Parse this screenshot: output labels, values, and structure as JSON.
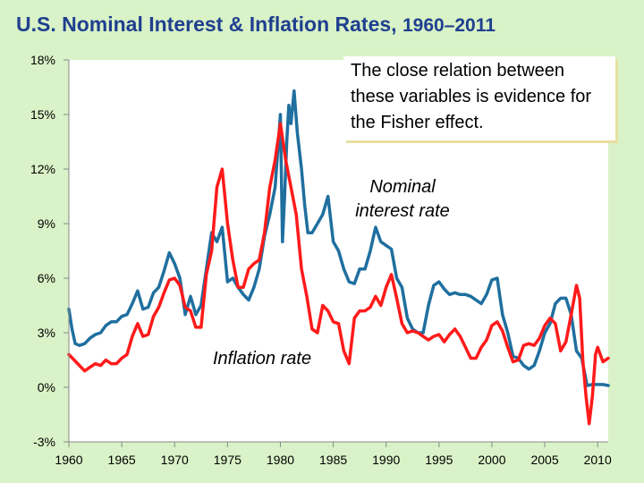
{
  "title": {
    "main": "U.S. Nominal Interest & Inflation Rates,",
    "years": "1960–2011"
  },
  "annotation": "The close relation between these variables is evidence for the Fisher effect.",
  "colors": {
    "background": "#d9f2c7",
    "title": "#1f3f8f",
    "nominal": "#1f6f9f",
    "inflation": "#ff1a1a"
  },
  "chart_data": {
    "type": "line",
    "title": "U.S. Nominal Interest & Inflation Rates, 1960–2011",
    "xlabel": "",
    "ylabel": "",
    "xlim": [
      1960,
      2011
    ],
    "ylim": [
      -3,
      18
    ],
    "x_ticks": [
      1960,
      1965,
      1970,
      1975,
      1980,
      1985,
      1990,
      1995,
      2000,
      2005,
      2010
    ],
    "y_ticks": [
      -3,
      0,
      3,
      6,
      9,
      12,
      15,
      18
    ],
    "y_tick_labels": [
      "-3%",
      "0%",
      "3%",
      "6%",
      "9%",
      "12%",
      "15%",
      "18%"
    ],
    "x_tick_labels": [
      "1960",
      "1965",
      "1970",
      "1975",
      "1980",
      "1985",
      "1990",
      "1995",
      "2000",
      "2005",
      "2010"
    ],
    "series": [
      {
        "name": "Nominal interest rate",
        "label": "Nominal\ninterest rate",
        "x": [
          1960.0,
          1960.3,
          1960.6,
          1961.0,
          1961.5,
          1962.0,
          1962.5,
          1963.0,
          1963.5,
          1964.0,
          1964.5,
          1965.0,
          1965.5,
          1966.0,
          1966.5,
          1967.0,
          1967.5,
          1968.0,
          1968.5,
          1969.0,
          1969.5,
          1970.0,
          1970.5,
          1971.0,
          1971.5,
          1972.0,
          1972.5,
          1973.0,
          1973.5,
          1974.0,
          1974.5,
          1975.0,
          1975.5,
          1976.0,
          1976.5,
          1977.0,
          1977.5,
          1978.0,
          1978.5,
          1979.0,
          1979.5,
          1980.0,
          1980.2,
          1980.4,
          1980.6,
          1980.8,
          1981.0,
          1981.3,
          1981.6,
          1982.0,
          1982.3,
          1982.6,
          1983.0,
          1983.5,
          1984.0,
          1984.5,
          1985.0,
          1985.5,
          1986.0,
          1986.5,
          1987.0,
          1987.5,
          1988.0,
          1988.5,
          1989.0,
          1989.5,
          1990.0,
          1990.5,
          1991.0,
          1991.5,
          1992.0,
          1992.5,
          1993.0,
          1993.5,
          1994.0,
          1994.5,
          1995.0,
          1995.5,
          1996.0,
          1996.5,
          1997.0,
          1997.5,
          1998.0,
          1998.5,
          1999.0,
          1999.5,
          2000.0,
          2000.5,
          2001.0,
          2001.5,
          2002.0,
          2002.5,
          2003.0,
          2003.5,
          2004.0,
          2004.5,
          2005.0,
          2005.5,
          2006.0,
          2006.5,
          2007.0,
          2007.5,
          2008.0,
          2008.5,
          2009.0,
          2009.5,
          2010.0,
          2010.5,
          2011.0
        ],
        "values": [
          4.3,
          3.2,
          2.4,
          2.3,
          2.4,
          2.7,
          2.9,
          3.0,
          3.4,
          3.6,
          3.6,
          3.9,
          4.0,
          4.6,
          5.3,
          4.3,
          4.4,
          5.2,
          5.5,
          6.4,
          7.4,
          6.8,
          6.0,
          4.0,
          5.0,
          4.0,
          4.5,
          6.5,
          8.5,
          8.0,
          8.8,
          5.8,
          6.0,
          5.5,
          5.1,
          4.8,
          5.5,
          6.5,
          8.3,
          9.5,
          11.0,
          15.0,
          8.0,
          10.5,
          13.5,
          15.5,
          14.5,
          16.3,
          14.0,
          12.0,
          10.0,
          8.5,
          8.5,
          9.0,
          9.5,
          10.5,
          8.0,
          7.5,
          6.5,
          5.8,
          5.7,
          6.5,
          6.5,
          7.5,
          8.8,
          8.0,
          7.8,
          7.6,
          6.0,
          5.5,
          3.8,
          3.2,
          3.0,
          3.0,
          4.5,
          5.6,
          5.8,
          5.4,
          5.1,
          5.2,
          5.1,
          5.1,
          5.0,
          4.8,
          4.6,
          5.1,
          5.9,
          6.0,
          4.0,
          3.0,
          1.7,
          1.6,
          1.2,
          1.0,
          1.2,
          2.0,
          3.0,
          3.5,
          4.6,
          4.9,
          4.9,
          4.0,
          2.0,
          1.6,
          0.1,
          0.15,
          0.15,
          0.15,
          0.1
        ]
      },
      {
        "name": "Inflation rate",
        "label": "Inflation rate",
        "x": [
          1960.0,
          1960.5,
          1961.0,
          1961.5,
          1962.0,
          1962.5,
          1963.0,
          1963.5,
          1964.0,
          1964.5,
          1965.0,
          1965.5,
          1966.0,
          1966.5,
          1967.0,
          1967.5,
          1968.0,
          1968.5,
          1969.0,
          1969.5,
          1970.0,
          1970.5,
          1971.0,
          1971.5,
          1972.0,
          1972.5,
          1973.0,
          1973.5,
          1974.0,
          1974.5,
          1975.0,
          1975.5,
          1976.0,
          1976.5,
          1977.0,
          1977.5,
          1978.0,
          1978.5,
          1979.0,
          1979.5,
          1980.0,
          1980.5,
          1981.0,
          1981.5,
          1982.0,
          1982.5,
          1983.0,
          1983.5,
          1984.0,
          1984.5,
          1985.0,
          1985.5,
          1986.0,
          1986.5,
          1987.0,
          1987.5,
          1988.0,
          1988.5,
          1989.0,
          1989.5,
          1990.0,
          1990.5,
          1991.0,
          1991.5,
          1992.0,
          1992.5,
          1993.0,
          1993.5,
          1994.0,
          1994.5,
          1995.0,
          1995.5,
          1996.0,
          1996.5,
          1997.0,
          1997.5,
          1998.0,
          1998.5,
          1999.0,
          1999.5,
          2000.0,
          2000.5,
          2001.0,
          2001.5,
          2002.0,
          2002.5,
          2003.0,
          2003.5,
          2004.0,
          2004.5,
          2005.0,
          2005.5,
          2006.0,
          2006.5,
          2007.0,
          2007.5,
          2008.0,
          2008.3,
          2008.6,
          2008.9,
          2009.2,
          2009.5,
          2009.8,
          2010.0,
          2010.5,
          2011.0
        ],
        "values": [
          1.8,
          1.5,
          1.2,
          0.9,
          1.1,
          1.3,
          1.2,
          1.5,
          1.3,
          1.3,
          1.6,
          1.8,
          2.8,
          3.5,
          2.8,
          2.9,
          3.9,
          4.4,
          5.2,
          5.9,
          6.0,
          5.6,
          4.4,
          4.2,
          3.3,
          3.3,
          6.2,
          7.5,
          11.0,
          12.0,
          9.0,
          7.0,
          5.5,
          5.5,
          6.5,
          6.8,
          7.0,
          8.5,
          11.0,
          12.5,
          14.5,
          12.5,
          11.0,
          9.5,
          6.5,
          5.0,
          3.2,
          3.0,
          4.5,
          4.2,
          3.6,
          3.5,
          2.0,
          1.3,
          3.8,
          4.2,
          4.2,
          4.4,
          5.0,
          4.5,
          5.5,
          6.2,
          4.9,
          3.5,
          3.0,
          3.1,
          3.0,
          2.8,
          2.6,
          2.8,
          2.9,
          2.5,
          2.9,
          3.2,
          2.8,
          2.2,
          1.6,
          1.6,
          2.2,
          2.6,
          3.4,
          3.6,
          3.1,
          2.2,
          1.4,
          1.5,
          2.3,
          2.4,
          2.3,
          2.7,
          3.4,
          3.8,
          3.5,
          2.0,
          2.5,
          4.0,
          5.6,
          4.9,
          1.5,
          -0.5,
          -2.0,
          -0.5,
          1.8,
          2.2,
          1.4,
          1.6
        ]
      }
    ]
  }
}
